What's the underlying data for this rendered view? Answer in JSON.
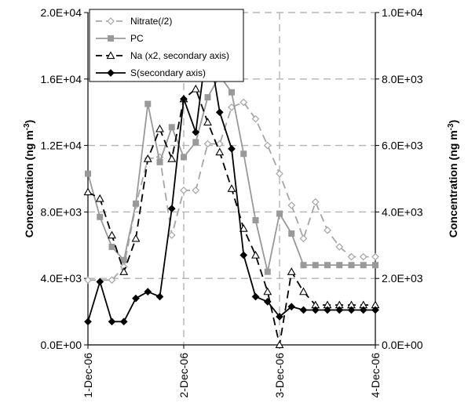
{
  "chart_data": {
    "type": "line",
    "xlabel": "",
    "ylabel": "Concentration (ng m",
    "ylabel_sup": "-3",
    "ylabel_close": ")",
    "y2label": "Concentration (ng m",
    "y2label_sup": "-3",
    "y2label_close": ")",
    "x_ticks": [
      "1-Dec-06",
      "2-Dec-06",
      "3-Dec-06",
      "4-Dec-06"
    ],
    "xlim": [
      0,
      3
    ],
    "ylim": [
      0,
      20000
    ],
    "y2lim": [
      0,
      10000
    ],
    "y_ticks": [
      "0.0E+00",
      "4.0E+03",
      "8.0E+03",
      "1.2E+04",
      "1.6E+04",
      "2.0E+04"
    ],
    "y2_ticks": [
      "0.0E+00",
      "2.0E+03",
      "4.0E+03",
      "6.0E+03",
      "8.0E+03",
      "1.0E+04"
    ],
    "grid": true,
    "legend_position": "top-left",
    "x_unit": "days from 1-Dec-06",
    "series": [
      {
        "name": "Nitrate(/2)",
        "axis": "primary",
        "style": "dashed",
        "marker": "diamond-open",
        "color": "#a6a6a6",
        "x": [
          0.0,
          0.25,
          0.375,
          0.5,
          0.625,
          0.75,
          0.875,
          1.0,
          1.125,
          1.25,
          1.375,
          1.5,
          1.625,
          1.75,
          1.875,
          2.0,
          2.125,
          2.25,
          2.375,
          2.5,
          2.625,
          2.75,
          2.875,
          3.0
        ],
        "y": [
          3900,
          3900,
          4700,
          8400,
          11200,
          11300,
          6600,
          9300,
          9300,
          12100,
          12100,
          14300,
          14600,
          13600,
          12000,
          10300,
          8400,
          6400,
          8600,
          6900,
          5900,
          5300,
          5300,
          5300
        ]
      },
      {
        "name": "PC",
        "axis": "primary",
        "style": "solid",
        "marker": "square",
        "color": "#999999",
        "x": [
          0.0,
          0.125,
          0.25,
          0.375,
          0.5,
          0.625,
          0.75,
          0.875,
          1.0,
          1.125,
          1.25,
          1.375,
          1.5,
          1.625,
          1.75,
          1.875,
          2.0,
          2.125,
          2.25,
          2.375,
          2.5,
          2.625,
          2.75,
          2.875,
          3.0
        ],
        "y": [
          10300,
          7700,
          5900,
          5100,
          8500,
          14500,
          11000,
          13100,
          11300,
          12200,
          14900,
          16200,
          15200,
          11500,
          7500,
          4400,
          7900,
          6700,
          4800,
          4800,
          4800,
          4800,
          4800,
          4800,
          4800
        ]
      },
      {
        "name": "Na (x2, secondary axis)",
        "axis": "secondary",
        "style": "dashed",
        "marker": "triangle-open",
        "color": "#000000",
        "x": [
          0.0,
          0.125,
          0.25,
          0.375,
          0.5,
          0.625,
          0.75,
          0.875,
          1.0,
          1.125,
          1.25,
          1.375,
          1.5,
          1.625,
          1.75,
          1.875,
          2.0,
          2.125,
          2.25,
          2.375,
          2.5,
          2.625,
          2.75,
          2.875,
          3.0
        ],
        "y": [
          4600,
          4400,
          3300,
          2200,
          3200,
          5600,
          6500,
          5600,
          7400,
          7700,
          6700,
          5800,
          4700,
          3500,
          2700,
          1600,
          0,
          2200,
          1600,
          1200,
          1200,
          1200,
          1200,
          1200,
          1200
        ]
      },
      {
        "name": "S(secondary axis)",
        "axis": "secondary",
        "style": "solid",
        "marker": "diamond-filled",
        "color": "#000000",
        "x": [
          0.0,
          0.125,
          0.25,
          0.375,
          0.5,
          0.625,
          0.75,
          0.875,
          1.0,
          1.125,
          1.25,
          1.375,
          1.5,
          1.625,
          1.75,
          1.875,
          2.0,
          2.125,
          2.25,
          2.375,
          2.5,
          2.625,
          2.75,
          2.875,
          3.0
        ],
        "y": [
          700,
          1900,
          700,
          700,
          1400,
          1600,
          1450,
          4100,
          7400,
          6400,
          9200,
          7000,
          5900,
          2700,
          1450,
          1300,
          850,
          1150,
          1050,
          1050,
          1050,
          1050,
          1050,
          1050,
          1050
        ]
      }
    ]
  }
}
